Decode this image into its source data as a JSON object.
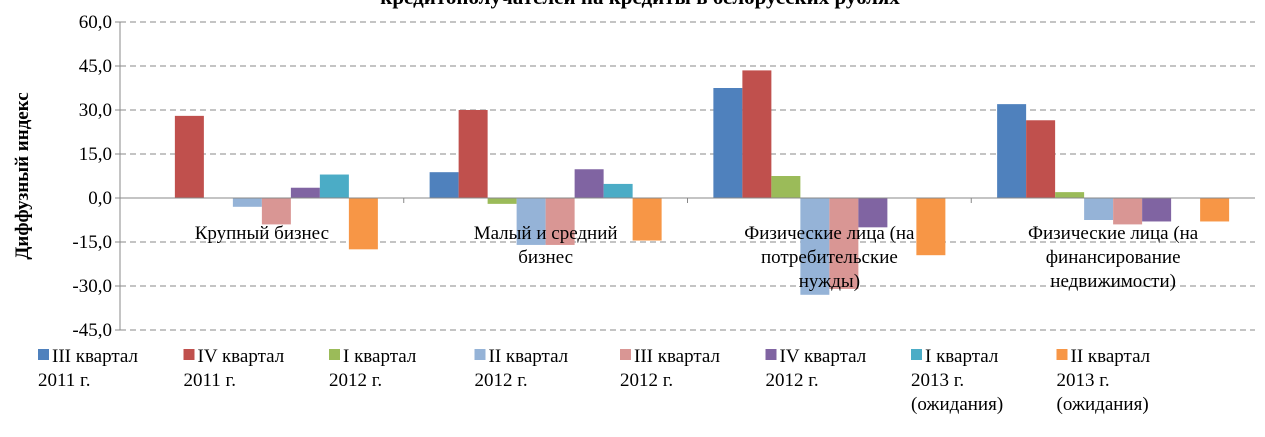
{
  "chart_data": {
    "type": "bar",
    "title": "кредитополучателей на кредиты в белорусских рублях",
    "y_label": "Диффузный индекс",
    "categories": [
      "Крупный бизнес",
      "Малый и средний бизнес",
      "Физические лица (на потребительские нужды)",
      "Физические лица (на финансирование недвижимости)"
    ],
    "series": [
      {
        "name": "III квартал 2011 г.",
        "color": "#4f81bd",
        "values": [
          0,
          8.8,
          37.5,
          32
        ]
      },
      {
        "name": "IV квартал 2011 г.",
        "color": "#c0504d",
        "values": [
          28,
          30,
          43.5,
          26.5
        ]
      },
      {
        "name": "I квартал 2012 г.",
        "color": "#9bbb59",
        "values": [
          0,
          -2,
          7.5,
          2
        ]
      },
      {
        "name": "II квартал 2012 г.",
        "color": "#95b3d7",
        "values": [
          -3,
          -16,
          -33,
          -7.5
        ]
      },
      {
        "name": "III квартал 2012 г.",
        "color": "#d99694",
        "values": [
          -9,
          -16,
          -31,
          -9
        ]
      },
      {
        "name": "IV квартал 2012 г.",
        "color": "#8064a2",
        "values": [
          3.5,
          9.8,
          -10,
          -8
        ]
      },
      {
        "name": "I квартал 2013 г. (ожидания)",
        "color": "#4bacc6",
        "values": [
          8,
          4.8,
          0,
          0
        ]
      },
      {
        "name": "II квартал 2013 г. (ожидания)",
        "color": "#f79646",
        "values": [
          -17.5,
          -14.5,
          -19.5,
          -8
        ]
      }
    ],
    "ylim": [
      -45,
      60
    ],
    "yticks": [
      {
        "value": -45,
        "label": "-45,0"
      },
      {
        "value": -30,
        "label": "-30,0"
      },
      {
        "value": -15,
        "label": "-15,0"
      },
      {
        "value": 0,
        "label": "0,0"
      },
      {
        "value": 15,
        "label": "15,0"
      },
      {
        "value": 30,
        "label": "30,0"
      },
      {
        "value": 45,
        "label": "45,0"
      },
      {
        "value": 60,
        "label": "60,0"
      }
    ],
    "grid": true,
    "legend": "bottom"
  }
}
